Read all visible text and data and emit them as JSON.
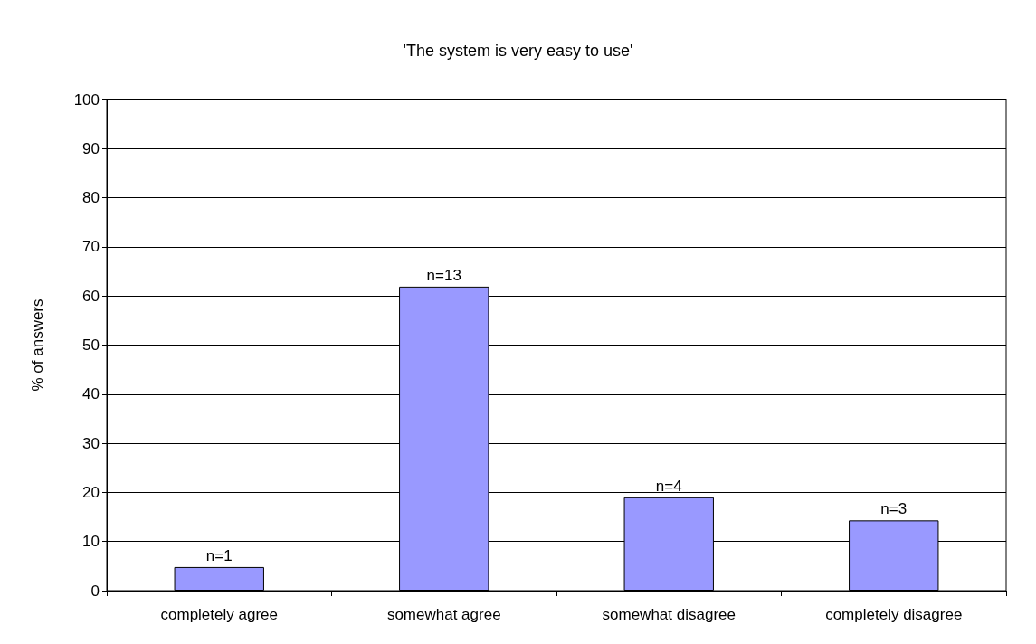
{
  "chart_data": {
    "type": "bar",
    "title": "'The system is very easy to use'",
    "ylabel": "% of answers",
    "categories": [
      "completely agree",
      "somewhat agree",
      "somewhat disagree",
      "completely disagree"
    ],
    "values": [
      4.8,
      61.9,
      19,
      14.3
    ],
    "annotations": [
      {
        "text": "n=1",
        "x": "completely agree",
        "y": 4.8
      },
      {
        "text": "n=13",
        "x": "somewhat agree",
        "y": 61.9
      },
      {
        "text": "n=4",
        "x": "somewhat disagree",
        "y": 19
      },
      {
        "text": "n=3",
        "x": "completely disagree",
        "y": 14.3
      }
    ],
    "color": "#9999ff",
    "ylim": [
      0,
      100
    ],
    "yticks": [
      0,
      10,
      20,
      30,
      40,
      50,
      60,
      70,
      80,
      90,
      100
    ],
    "grid": "y"
  }
}
